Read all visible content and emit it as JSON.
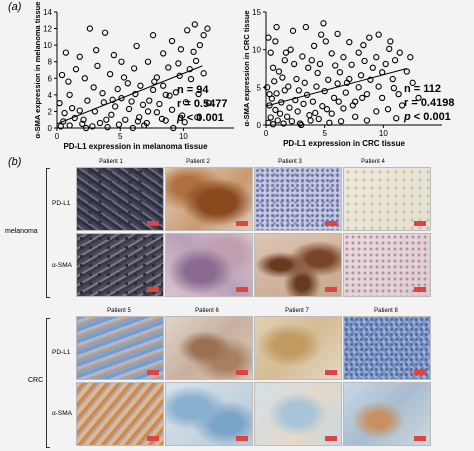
{
  "panel_a_label": "(a)",
  "panel_b_label": "(b)",
  "chart_data": [
    {
      "type": "scatter",
      "xlabel": "PD-L1 expression in melanoma tissue",
      "ylabel": "α-SMA expression in melanoma tissue",
      "xlim": [
        0,
        14
      ],
      "ylim": [
        0,
        14
      ],
      "xticks": [
        0,
        5,
        10
      ],
      "yticks": [
        0,
        2,
        4,
        6,
        8,
        10,
        12,
        14
      ],
      "stats": {
        "n": "n = 94",
        "r": "r = 0.5477",
        "p_symbol": "p",
        "p_value": "< 0.001"
      },
      "trend": {
        "x": [
          0,
          11.5
        ],
        "y": [
          0.5,
          7.5
        ]
      },
      "points": [
        [
          0.3,
          0.2
        ],
        [
          0.5,
          0.8
        ],
        [
          1,
          0.3
        ],
        [
          1.4,
          1.2
        ],
        [
          2,
          0.5
        ],
        [
          2.3,
          0
        ],
        [
          0.2,
          3
        ],
        [
          0.6,
          1.8
        ],
        [
          1,
          4
        ],
        [
          1.8,
          2.1
        ],
        [
          2.1,
          1
        ],
        [
          2.8,
          0.2
        ],
        [
          3,
          2
        ],
        [
          3.4,
          0.6
        ],
        [
          3.7,
          3.1
        ],
        [
          4,
          0.1
        ],
        [
          4.3,
          1.6
        ],
        [
          4.6,
          2.6
        ],
        [
          4.9,
          0.4
        ],
        [
          5.1,
          3.6
        ],
        [
          5.4,
          1
        ],
        [
          5.7,
          2.3
        ],
        [
          6,
          0
        ],
        [
          6.2,
          4.1
        ],
        [
          6.5,
          1.3
        ],
        [
          6.8,
          2.8
        ],
        [
          7.1,
          0.6
        ],
        [
          7.3,
          3.3
        ],
        [
          7.6,
          4.6
        ],
        [
          7.9,
          1.9
        ],
        [
          8.1,
          2.9
        ],
        [
          8.4,
          5.1
        ],
        [
          8.6,
          0.9
        ],
        [
          8.9,
          3.9
        ],
        [
          9.1,
          2.2
        ],
        [
          9.4,
          4.3
        ],
        [
          9.7,
          6.3
        ],
        [
          9.9,
          1.5
        ],
        [
          10.2,
          3.1
        ],
        [
          10.5,
          7.1
        ],
        [
          10.8,
          9.2
        ],
        [
          11,
          8.1
        ],
        [
          11.3,
          10
        ],
        [
          11.6,
          11.2
        ],
        [
          11.9,
          12
        ],
        [
          10.3,
          11.8
        ],
        [
          9.1,
          10.5
        ],
        [
          8.4,
          9
        ],
        [
          7.2,
          8
        ],
        [
          6.1,
          7.2
        ],
        [
          5.1,
          8
        ],
        [
          4.2,
          6.5
        ],
        [
          3.2,
          7.5
        ],
        [
          2.2,
          6
        ],
        [
          1.5,
          7.1
        ],
        [
          2.6,
          12
        ],
        [
          3.8,
          11.5
        ],
        [
          5.6,
          5.4
        ],
        [
          6.6,
          5.1
        ],
        [
          7.9,
          6.1
        ],
        [
          9.6,
          7.8
        ],
        [
          10.6,
          5.9
        ],
        [
          11.2,
          4.1
        ],
        [
          12,
          3
        ],
        [
          4.8,
          4.7
        ],
        [
          3.6,
          4.2
        ],
        [
          2.4,
          3.3
        ],
        [
          1.2,
          2.4
        ],
        [
          0.9,
          5.6
        ],
        [
          0.4,
          6.4
        ],
        [
          5.9,
          3.2
        ],
        [
          6.9,
          0.3
        ],
        [
          8.3,
          1.1
        ],
        [
          9.2,
          0
        ],
        [
          10.1,
          0.7
        ],
        [
          11.1,
          1.3
        ],
        [
          4.5,
          8.8
        ],
        [
          7.6,
          11.2
        ],
        [
          10.9,
          12.5
        ],
        [
          3.1,
          9.4
        ],
        [
          6.3,
          9.9
        ],
        [
          8.8,
          7.3
        ],
        [
          2.9,
          4.9
        ],
        [
          4.4,
          3.4
        ],
        [
          5.3,
          6.1
        ],
        [
          7.2,
          2
        ],
        [
          8.6,
          4
        ],
        [
          9.8,
          9.5
        ],
        [
          11.6,
          6.6
        ],
        [
          1.8,
          8.6
        ],
        [
          0.7,
          9.1
        ],
        [
          3.9,
          1
        ],
        [
          6.4,
          0.8
        ],
        [
          7.7,
          5.6
        ]
      ]
    },
    {
      "type": "scatter",
      "xlabel": "PD-L1 expression in CRC tissue",
      "ylabel": "α-SMA expression in CRC tissue",
      "xlim": [
        0,
        15
      ],
      "ylim": [
        0,
        15
      ],
      "xticks": [
        0,
        5,
        10
      ],
      "yticks": [
        0,
        5,
        10,
        15
      ],
      "stats": {
        "n": "n = 112",
        "r": "r = 0.4198",
        "p_symbol": "p",
        "p_value": "< 0.001"
      },
      "trend": {
        "x": [
          0,
          12
        ],
        "y": [
          2.5,
          7.5
        ]
      },
      "points": [
        [
          0.2,
          0.3
        ],
        [
          0.4,
          1
        ],
        [
          0.6,
          0.1
        ],
        [
          0.8,
          2
        ],
        [
          1,
          0.6
        ],
        [
          1.2,
          1.5
        ],
        [
          0.3,
          2.6
        ],
        [
          0.5,
          3.5
        ],
        [
          0.9,
          4.2
        ],
        [
          1.3,
          3
        ],
        [
          0.1,
          5
        ],
        [
          0.7,
          5.8
        ],
        [
          1.5,
          0.2
        ],
        [
          1.8,
          1.1
        ],
        [
          2,
          2.3
        ],
        [
          2.2,
          0.5
        ],
        [
          2.5,
          3.3
        ],
        [
          2.7,
          1.8
        ],
        [
          3,
          0
        ],
        [
          3.2,
          2.8
        ],
        [
          3.5,
          4
        ],
        [
          3.7,
          1.3
        ],
        [
          4,
          3.1
        ],
        [
          4.3,
          5.1
        ],
        [
          4.5,
          0.8
        ],
        [
          4.8,
          2.5
        ],
        [
          5,
          4.5
        ],
        [
          5.3,
          6
        ],
        [
          5.6,
          1.5
        ],
        [
          5.8,
          3.6
        ],
        [
          6.1,
          5.5
        ],
        [
          6.3,
          7
        ],
        [
          6.6,
          2.2
        ],
        [
          6.8,
          4.3
        ],
        [
          7.1,
          6.1
        ],
        [
          7.3,
          8
        ],
        [
          7.6,
          3.1
        ],
        [
          7.9,
          5
        ],
        [
          8.1,
          6.6
        ],
        [
          8.4,
          8.5
        ],
        [
          8.6,
          4.1
        ],
        [
          8.9,
          6
        ],
        [
          9.1,
          7.6
        ],
        [
          9.4,
          9
        ],
        [
          9.6,
          5.1
        ],
        [
          9.9,
          7
        ],
        [
          10.2,
          8.1
        ],
        [
          10.5,
          10.1
        ],
        [
          10.8,
          6.1
        ],
        [
          11,
          8.6
        ],
        [
          11.3,
          4.1
        ],
        [
          11.6,
          2.6
        ],
        [
          12,
          7.1
        ],
        [
          1.1,
          7.1
        ],
        [
          1.6,
          8.6
        ],
        [
          2.1,
          10
        ],
        [
          2.6,
          6.1
        ],
        [
          3.1,
          9.1
        ],
        [
          3.6,
          7.6
        ],
        [
          4.1,
          10.5
        ],
        [
          4.6,
          8.1
        ],
        [
          5.1,
          11.1
        ],
        [
          5.6,
          9.5
        ],
        [
          6.1,
          12.1
        ],
        [
          2.3,
          12.5
        ],
        [
          3.4,
          13
        ],
        [
          4.9,
          13.5
        ],
        [
          0.4,
          9.6
        ],
        [
          0.8,
          11.1
        ],
        [
          7.1,
          11
        ],
        [
          8.3,
          10.6
        ],
        [
          9.6,
          12
        ],
        [
          10.6,
          11.1
        ],
        [
          11.4,
          9.6
        ],
        [
          12.5,
          5.6
        ],
        [
          13,
          3.6
        ],
        [
          6.4,
          0.5
        ],
        [
          7.6,
          1.1
        ],
        [
          8.6,
          0.6
        ],
        [
          9.4,
          1.8
        ],
        [
          10.4,
          2.1
        ],
        [
          11.1,
          0.9
        ],
        [
          5.4,
          0.3
        ],
        [
          4.2,
          1.6
        ],
        [
          3.3,
          5.6
        ],
        [
          2.8,
          4.6
        ],
        [
          1.9,
          5.1
        ],
        [
          1.4,
          6.3
        ],
        [
          0.6,
          7.6
        ],
        [
          6.6,
          9
        ],
        [
          7.9,
          9.6
        ],
        [
          8.8,
          11.6
        ],
        [
          9.9,
          3.6
        ],
        [
          10.9,
          4.9
        ],
        [
          4.4,
          6.9
        ],
        [
          5.9,
          7.9
        ],
        [
          6.9,
          5.6
        ],
        [
          3.9,
          8.6
        ],
        [
          2.4,
          8.1
        ],
        [
          1.7,
          9.6
        ],
        [
          0.2,
          11.6
        ],
        [
          0.9,
          13
        ],
        [
          12.3,
          9
        ],
        [
          5.2,
          2.1
        ],
        [
          6.2,
          3.1
        ],
        [
          7.4,
          2.6
        ],
        [
          8.2,
          3.6
        ],
        [
          3.8,
          0.6
        ],
        [
          2.9,
          0.2
        ],
        [
          1.6,
          4.6
        ],
        [
          0.3,
          4.1
        ],
        [
          4.7,
          12
        ]
      ]
    }
  ],
  "ihc": {
    "melanoma": {
      "group_label": "melanoma",
      "headers": [
        "Patient 1",
        "Patient 2",
        "Patient 3",
        "Patient 4"
      ],
      "rows": [
        "PD-L1",
        "α-SMA"
      ]
    },
    "crc": {
      "group_label": "CRC",
      "headers": [
        "Patient 5",
        "Patient 6",
        "Patient 7",
        "Patient 8"
      ],
      "rows": [
        "PD-L1",
        "α-SMA"
      ]
    }
  },
  "colors": {
    "background": "#f3f3f3",
    "marker_stroke": "#000000",
    "scale_bar": "#dd4444"
  }
}
